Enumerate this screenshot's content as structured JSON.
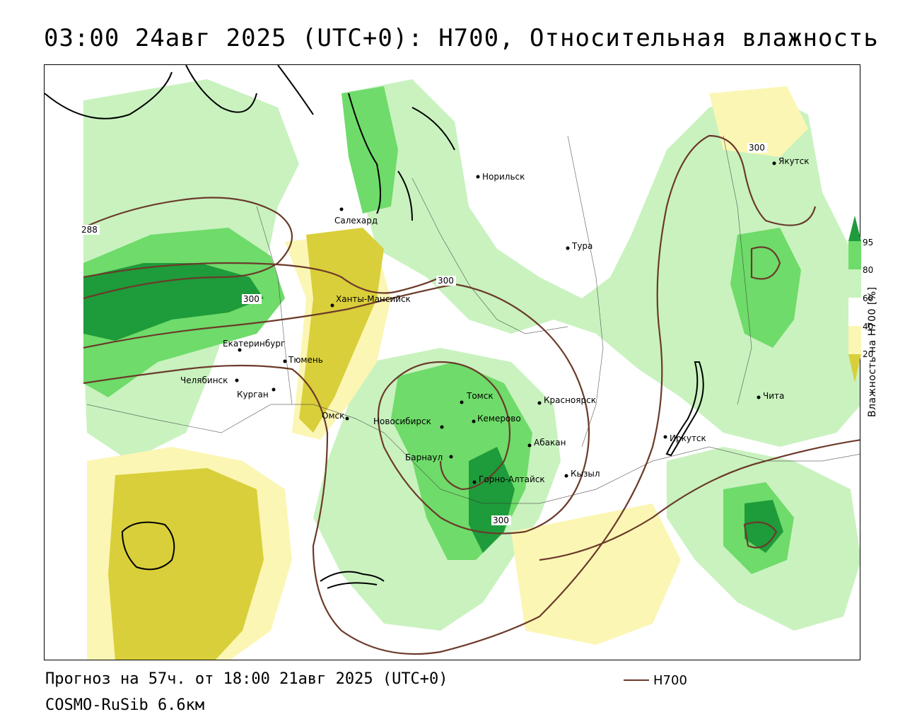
{
  "title": "03:00 24авг 2025 (UTC+0): H700, Относительная влажность",
  "footer": {
    "forecast": "Прогноз на 57ч. от 18:00 21авг 2025 (UTC+0)",
    "model": "COSMO-RuSib 6.6км"
  },
  "legend": {
    "line_label": "H700",
    "line_color": "#6b3a2a"
  },
  "colorbar": {
    "title": "Влажность на H700 [%]",
    "ticks": [
      "95",
      "80",
      "60",
      "40",
      "20"
    ],
    "colors": {
      "very_dry": "#d9cf3a",
      "dry": "#fbf6b4",
      "neutral": "#ffffff",
      "moist": "#c9f2bf",
      "humid": "#6fdb6a",
      "saturated": "#1e9b3a"
    }
  },
  "isolines": [
    "288",
    "300",
    "300",
    "300",
    "300"
  ],
  "cities": [
    {
      "name": "Норильск"
    },
    {
      "name": "Якутск"
    },
    {
      "name": "Салехард"
    },
    {
      "name": "Тура"
    },
    {
      "name": "Ханты-Мансийск"
    },
    {
      "name": "Екатеринбург"
    },
    {
      "name": "Тюмень"
    },
    {
      "name": "Челябинск"
    },
    {
      "name": "Курган"
    },
    {
      "name": "Омск"
    },
    {
      "name": "Томск"
    },
    {
      "name": "Новосибирск"
    },
    {
      "name": "Кемерово"
    },
    {
      "name": "Красноярск"
    },
    {
      "name": "Абакан"
    },
    {
      "name": "Барнаул"
    },
    {
      "name": "Горно-Алтайск"
    },
    {
      "name": "Кызыл"
    },
    {
      "name": "Иркутск"
    },
    {
      "name": "Чита"
    }
  ]
}
